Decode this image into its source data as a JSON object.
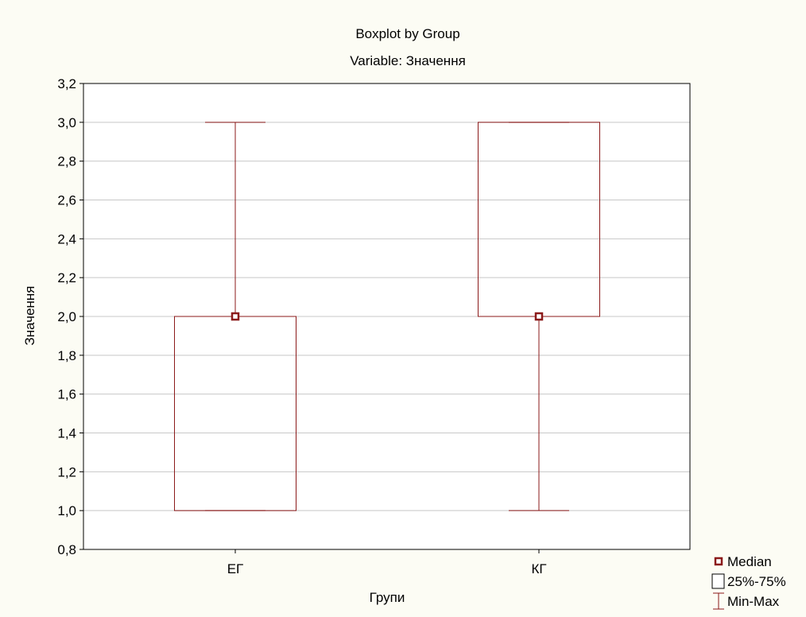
{
  "chart_data": {
    "type": "boxplot",
    "title": "Boxplot by Group",
    "subtitle": "Variable: Значення",
    "xlabel": "Групи",
    "ylabel": "Значення",
    "ylim": [
      0.8,
      3.2
    ],
    "yticks": [
      0.8,
      1.0,
      1.2,
      1.4,
      1.6,
      1.8,
      2.0,
      2.2,
      2.4,
      2.6,
      2.8,
      3.0,
      3.2
    ],
    "ytick_labels": [
      "0,8",
      "1,0",
      "1,2",
      "1,4",
      "1,6",
      "1,8",
      "2,0",
      "2,2",
      "2,4",
      "2,6",
      "2,8",
      "3,0",
      "3,2"
    ],
    "grid": true,
    "legend_position": "bottom-right",
    "legend": [
      "Median",
      "25%-75%",
      "Min-Max"
    ],
    "categories": [
      "ЕГ",
      "КГ"
    ],
    "boxes": [
      {
        "group": "ЕГ",
        "min": 1.0,
        "q1": 1.0,
        "median": 2.0,
        "q3": 2.0,
        "max": 3.0
      },
      {
        "group": "КГ",
        "min": 1.0,
        "q1": 2.0,
        "median": 2.0,
        "q3": 3.0,
        "max": 3.0
      }
    ],
    "colors": {
      "box": "#8b1a1a",
      "median": "#8b1a1a",
      "grid": "#c8c8c8",
      "background": "#fcfcf4"
    }
  }
}
